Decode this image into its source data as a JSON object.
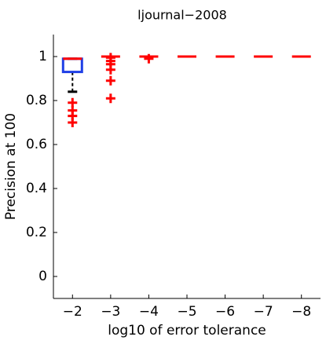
{
  "chart_data": {
    "type": "box",
    "title": "ljournal−2008",
    "x_label": "log10 of error tolerance",
    "y_label": "Precision at 100",
    "categories": [
      "−2",
      "−3",
      "−4",
      "−5",
      "−6",
      "−7",
      "−8"
    ],
    "boxes": [
      {
        "q1": 0.93,
        "median": 0.99,
        "q3": 0.99,
        "whisker_low": 0.84,
        "whisker_high": 0.99,
        "outliers": [
          0.79,
          0.755,
          0.73,
          0.7
        ]
      },
      {
        "q1": 1,
        "median": 1,
        "q3": 1,
        "whisker_low": 1,
        "whisker_high": 1,
        "outliers": [
          0.995,
          0.98,
          0.965,
          0.94,
          0.89,
          0.81
        ]
      },
      {
        "q1": 1,
        "median": 1,
        "q3": 1,
        "whisker_low": 1,
        "whisker_high": 1,
        "outliers": [
          0.99
        ]
      },
      {
        "q1": 1,
        "median": 1,
        "q3": 1,
        "whisker_low": 1,
        "whisker_high": 1,
        "outliers": []
      },
      {
        "q1": 1,
        "median": 1,
        "q3": 1,
        "whisker_low": 1,
        "whisker_high": 1,
        "outliers": []
      },
      {
        "q1": 1,
        "median": 1,
        "q3": 1,
        "whisker_low": 1,
        "whisker_high": 1,
        "outliers": []
      },
      {
        "q1": 1,
        "median": 1,
        "q3": 1,
        "whisker_low": 1,
        "whisker_high": 1,
        "outliers": []
      }
    ],
    "box_color": "#1f3fe6",
    "median_color": "#ff0000",
    "whisker_color": "#000000",
    "outlier_color": "#ff0000",
    "ylim": [
      -0.1,
      1.1
    ],
    "yticks": [
      0,
      0.2,
      0.4,
      0.6,
      0.8,
      1
    ]
  }
}
